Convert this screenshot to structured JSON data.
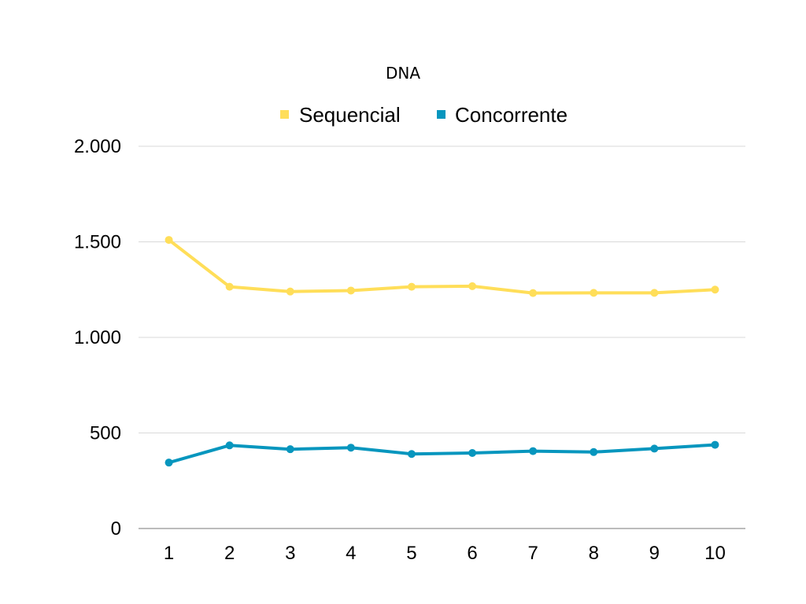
{
  "chart_data": {
    "type": "line",
    "title": "DNA",
    "xlabel": "",
    "ylabel": "",
    "categories": [
      "1",
      "2",
      "3",
      "4",
      "5",
      "6",
      "7",
      "8",
      "9",
      "10"
    ],
    "ylim": [
      0,
      2000
    ],
    "yticks": [
      0,
      500,
      1000,
      1500,
      2000
    ],
    "ytick_labels": [
      "0",
      "500",
      "1.000",
      "1.500",
      "2.000"
    ],
    "grid": true,
    "legend_position": "top",
    "series": [
      {
        "name": "Sequencial",
        "color": "#FFDE59",
        "values": [
          1510,
          1265,
          1240,
          1245,
          1265,
          1268,
          1232,
          1233,
          1233,
          1250
        ]
      },
      {
        "name": "Concorrente",
        "color": "#0796BE",
        "values": [
          345,
          435,
          415,
          423,
          390,
          395,
          405,
          400,
          418,
          438
        ]
      }
    ]
  }
}
